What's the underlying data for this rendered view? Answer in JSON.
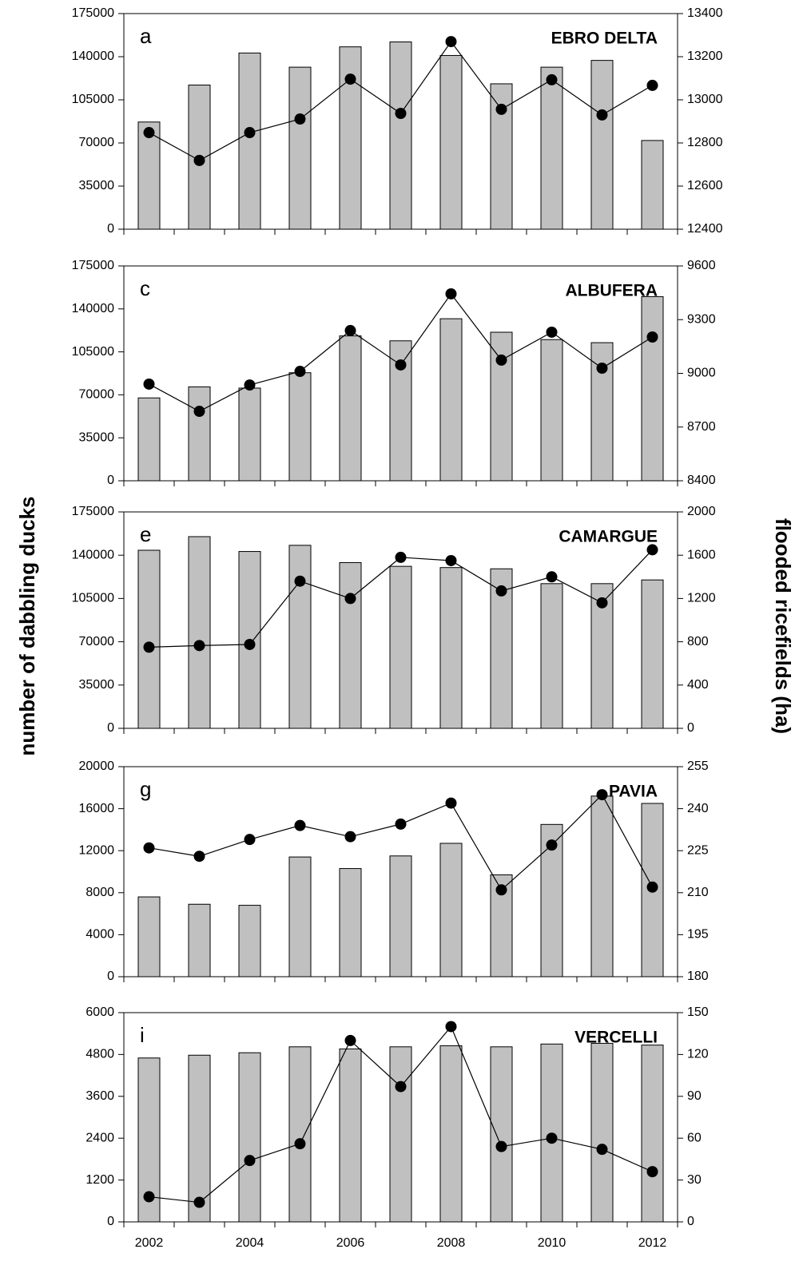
{
  "ylabel": "number of dabbling ducks",
  "y2label": "flooded ricefields (ha)",
  "chart_data": [
    {
      "type": "combo",
      "label": "a",
      "title": "EBRO DELTA",
      "ylim": [
        0,
        175000
      ],
      "yticks": [
        0,
        35000,
        70000,
        105000,
        140000,
        175000
      ],
      "y2lim": [
        12400,
        13400
      ],
      "y2ticks": [
        12400,
        12600,
        12800,
        13000,
        13200,
        13400
      ],
      "series": [
        {
          "type": "bar",
          "color": "#c0c0c0",
          "values": [
            87000,
            117000,
            143000,
            131500,
            148000,
            152000,
            141000,
            118000,
            131500,
            137000,
            72000
          ]
        },
        {
          "type": "line",
          "color": "#000000",
          "axis": "y2",
          "values": [
            12848,
            12719,
            12848,
            12911,
            13096,
            12937,
            13270,
            12956,
            13093,
            12930,
            13067
          ]
        }
      ]
    },
    {
      "type": "combo",
      "label": "c",
      "title": "ALBUFERA",
      "ylim": [
        0,
        175000
      ],
      "yticks": [
        0,
        35000,
        70000,
        105000,
        140000,
        175000
      ],
      "y2lim": [
        8400,
        9600
      ],
      "y2ticks": [
        8400,
        8700,
        9000,
        9300,
        9600
      ],
      "series": [
        {
          "type": "bar",
          "color": "#c0c0c0",
          "values": [
            67500,
            76500,
            75500,
            88000,
            118000,
            114000,
            132000,
            121000,
            115000,
            112500,
            150000
          ]
        },
        {
          "type": "line",
          "color": "#000000",
          "axis": "y2",
          "values": [
            8940,
            8788,
            8935,
            9011,
            9239,
            9047,
            9444,
            9074,
            9230,
            9029,
            9203
          ]
        }
      ]
    },
    {
      "type": "combo",
      "label": "e",
      "title": "CAMARGUE",
      "ylim": [
        0,
        175000
      ],
      "yticks": [
        0,
        35000,
        70000,
        105000,
        140000,
        175000
      ],
      "y2lim": [
        0,
        2000
      ],
      "y2ticks": [
        0,
        400,
        800,
        1200,
        1600,
        2000
      ],
      "series": [
        {
          "type": "bar",
          "color": "#c0c0c0",
          "values": [
            144000,
            155000,
            143000,
            148000,
            134000,
            131000,
            130000,
            129000,
            117000,
            117000,
            120000
          ]
        },
        {
          "type": "line",
          "color": "#000000",
          "axis": "y2",
          "values": [
            750,
            765,
            775,
            1360,
            1200,
            1580,
            1550,
            1270,
            1400,
            1160,
            1650
          ]
        }
      ]
    },
    {
      "type": "combo",
      "label": "g",
      "title": "PAVIA",
      "ylim": [
        0,
        20000
      ],
      "yticks": [
        0,
        4000,
        8000,
        12000,
        16000,
        20000
      ],
      "y2lim": [
        180,
        255
      ],
      "y2ticks": [
        180,
        195,
        210,
        225,
        240,
        255
      ],
      "series": [
        {
          "type": "bar",
          "color": "#c0c0c0",
          "values": [
            7600,
            6900,
            6800,
            11400,
            10300,
            11500,
            12700,
            9700,
            14500,
            17200,
            16500
          ]
        },
        {
          "type": "line",
          "color": "#000000",
          "axis": "y2",
          "values": [
            226,
            223,
            229,
            234,
            230,
            234.5,
            242,
            211,
            227,
            245,
            212
          ]
        }
      ]
    },
    {
      "type": "combo",
      "label": "i",
      "title": "VERCELLI",
      "ylim": [
        0,
        6000
      ],
      "yticks": [
        0,
        1200,
        2400,
        3600,
        4800,
        6000
      ],
      "y2lim": [
        0,
        150
      ],
      "y2ticks": [
        0,
        30,
        60,
        90,
        120,
        150
      ],
      "categories": [
        "2002",
        null,
        "2004",
        null,
        "2006",
        null,
        "2008",
        null,
        "2010",
        null,
        "2012"
      ],
      "series": [
        {
          "type": "bar",
          "color": "#c0c0c0",
          "values": [
            4700,
            4780,
            4850,
            5020,
            4960,
            5020,
            5050,
            5020,
            5100,
            5120,
            5070
          ]
        },
        {
          "type": "line",
          "color": "#000000",
          "axis": "y2",
          "values": [
            18,
            14,
            44,
            56,
            130,
            97,
            140,
            54,
            60,
            52,
            36
          ]
        }
      ]
    }
  ]
}
